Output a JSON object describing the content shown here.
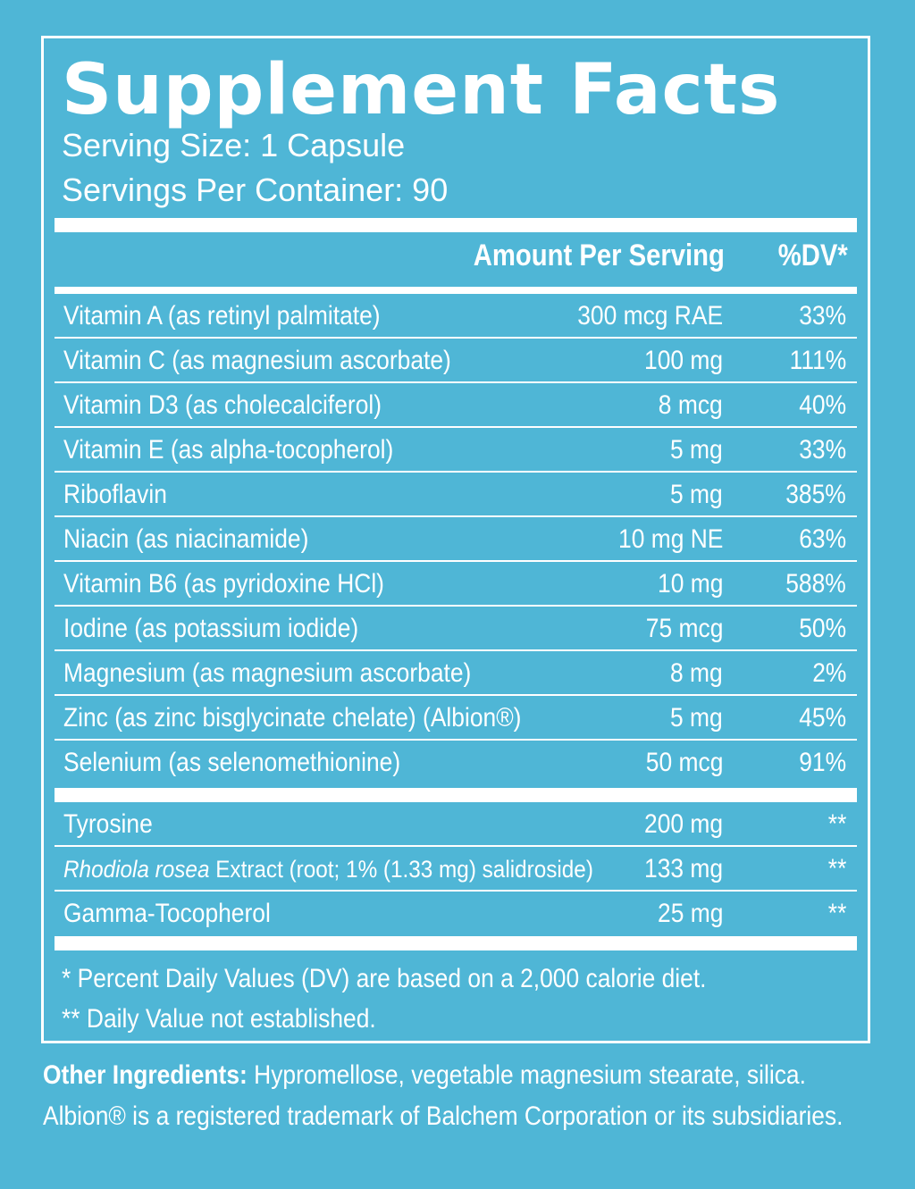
{
  "title": "Supplement Facts",
  "serving_size": "Serving Size: 1 Capsule",
  "servings_per_container": "Servings Per Container: 90",
  "header": {
    "amount": "Amount Per Serving",
    "dv": "%DV*"
  },
  "nutrients": [
    {
      "name": "Vitamin A (as retinyl palmitate)",
      "amount": "300 mcg RAE",
      "dv": "33%"
    },
    {
      "name": "Vitamin C (as magnesium ascorbate)",
      "amount": "100 mg",
      "dv": "111%"
    },
    {
      "name": "Vitamin D3 (as cholecalciferol)",
      "amount": "8 mcg",
      "dv": "40%"
    },
    {
      "name": "Vitamin E (as alpha-tocopherol)",
      "amount": "5 mg",
      "dv": "33%"
    },
    {
      "name": "Riboflavin",
      "amount": "5 mg",
      "dv": "385%"
    },
    {
      "name": "Niacin (as niacinamide)",
      "amount": "10 mg NE",
      "dv": "63%"
    },
    {
      "name": "Vitamin B6 (as pyridoxine HCl)",
      "amount": "10 mg",
      "dv": "588%"
    },
    {
      "name": "Iodine (as potassium iodide)",
      "amount": "75 mcg",
      "dv": "50%"
    },
    {
      "name": "Magnesium (as magnesium ascorbate)",
      "amount": "8 mg",
      "dv": "2%"
    },
    {
      "name": "Zinc (as zinc bisglycinate chelate) (Albion®)",
      "amount": "5 mg",
      "dv": "45%"
    },
    {
      "name": "Selenium (as selenomethionine)",
      "amount": "50 mcg",
      "dv": "91%"
    }
  ],
  "other_nutrients": [
    {
      "name": "Tyrosine",
      "amount": "200 mg",
      "dv": "**"
    },
    {
      "name_italic": "Rhodiola rosea",
      "name": " Extract (root; 1% (1.33 mg) salidroside)",
      "amount": "133 mg",
      "dv": "**"
    },
    {
      "name": "Gamma-Tocopherol",
      "amount": "25 mg",
      "dv": "**"
    }
  ],
  "footnotes": {
    "dv_note": "* Percent Daily Values (DV) are based on a 2,000 calorie diet.",
    "not_established": "** Daily Value not established."
  },
  "other_ingredients": {
    "label": "Other Ingredients:",
    "text": " Hypromellose, vegetable magnesium stearate, silica.",
    "trademark": "Albion® is a registered trademark of Balchem Corporation or its subsidiaries."
  },
  "colors": {
    "background": "#4fb6d6",
    "text": "#ffffff"
  }
}
